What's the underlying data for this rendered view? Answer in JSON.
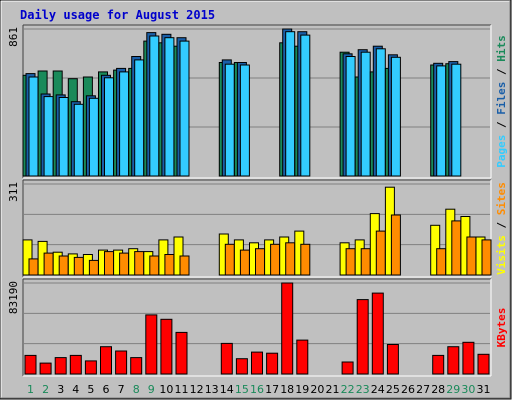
{
  "chart_data": {
    "type": "bar",
    "title": "Daily usage for August 2015",
    "days": [
      "1",
      "2",
      "3",
      "4",
      "5",
      "6",
      "7",
      "8",
      "9",
      "10",
      "11",
      "12",
      "13",
      "14",
      "15",
      "16",
      "17",
      "18",
      "19",
      "20",
      "21",
      "22",
      "23",
      "24",
      "25",
      "26",
      "27",
      "28",
      "29",
      "30",
      "31"
    ],
    "weekend_days": [
      "1",
      "2",
      "8",
      "9",
      "15",
      "16",
      "22",
      "23",
      "29",
      "30"
    ],
    "panels": [
      {
        "id": "pages-files-hits",
        "ymax": 861,
        "ytick_label": "861",
        "legend": [
          "Pages",
          "Files",
          "Hits"
        ],
        "series": [
          {
            "name": "Hits",
            "color": "#1a8a5a",
            "values": [
              590,
              615,
              615,
              570,
              580,
              610,
              620,
              630,
              790,
              780,
              760,
              0,
              0,
              665,
              665,
              0,
              0,
              780,
              760,
              0,
              0,
              725,
              580,
              610,
              630,
              0,
              0,
              650,
              658,
              0,
              0
            ]
          },
          {
            "name": "Files",
            "color": "#1a5fa8",
            "values": [
              600,
              480,
              475,
              435,
              470,
              590,
              630,
              700,
              840,
              830,
              810,
              0,
              0,
              680,
              665,
              0,
              0,
              861,
              845,
              0,
              0,
              716,
              740,
              760,
              710,
              0,
              0,
              660,
              670,
              0,
              0
            ]
          },
          {
            "name": "Pages",
            "color": "#33ccff",
            "values": [
              580,
              465,
              460,
              420,
              455,
              575,
              610,
              680,
              820,
              810,
              790,
              0,
              0,
              655,
              650,
              0,
              0,
              845,
              825,
              0,
              0,
              700,
              725,
              745,
              695,
              0,
              0,
              645,
              655,
              0,
              0
            ]
          }
        ]
      },
      {
        "id": "visits-sites",
        "ymax": 311,
        "ytick_label": "311",
        "legend": [
          "Visits",
          "Sites"
        ],
        "series": [
          {
            "name": "Visits",
            "color": "#ffff00",
            "values": [
              120,
              115,
              78,
              72,
              70,
              85,
              85,
              90,
              80,
              120,
              130,
              0,
              0,
              140,
              120,
              110,
              120,
              130,
              150,
              0,
              0,
              110,
              120,
              210,
              300,
              0,
              0,
              170,
              225,
              200,
              130
            ]
          },
          {
            "name": "Sites",
            "color": "#ff8c00",
            "values": [
              55,
              75,
              65,
              60,
              50,
              80,
              75,
              80,
              65,
              70,
              65,
              0,
              0,
              105,
              85,
              90,
              105,
              110,
              105,
              0,
              0,
              90,
              90,
              150,
              205,
              0,
              0,
              90,
              185,
              130,
              120
            ]
          }
        ]
      },
      {
        "id": "kbytes",
        "ymax": 83190,
        "ytick_label": "83190",
        "legend": [
          "KBytes"
        ],
        "series": [
          {
            "name": "KBytes",
            "color": "#ff0000",
            "values": [
              17000,
              10000,
              15000,
              17000,
              12000,
              25000,
              21000,
              15000,
              54000,
              50000,
              38000,
              0,
              0,
              28000,
              14000,
              20000,
              19000,
              83190,
              31000,
              0,
              0,
              11000,
              68000,
              74000,
              27000,
              0,
              0,
              17000,
              25000,
              29000,
              18000
            ]
          }
        ]
      }
    ],
    "grid": true
  }
}
